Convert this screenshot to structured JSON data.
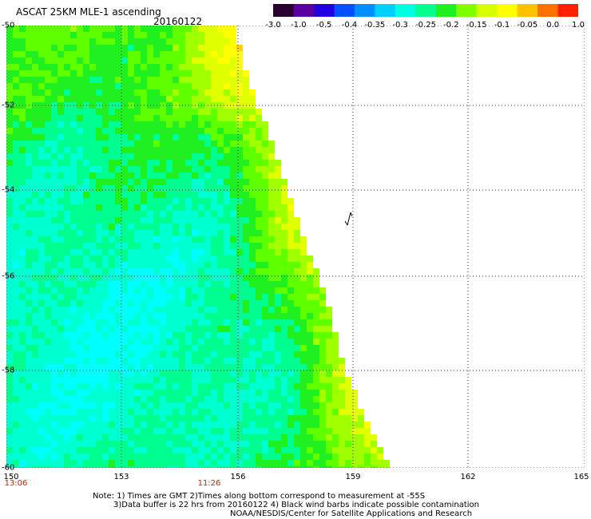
{
  "header": {
    "title": "ASCAT 25KM MLE-1 ascending",
    "date": "20160122"
  },
  "colorbar": {
    "colors": [
      "#2a0030",
      "#5a00a0",
      "#2000e0",
      "#0050ff",
      "#0090ff",
      "#00d0ff",
      "#00ffe0",
      "#00ff90",
      "#20f020",
      "#80ff00",
      "#d8ff00",
      "#ffff00",
      "#ffc000",
      "#ff7000",
      "#ff2000"
    ],
    "labels": [
      "-3.0",
      "-1.0",
      "-0.5",
      "-0.4",
      "-0.35",
      "-0.3",
      "-0.25",
      "-0.2",
      "-0.15",
      "-0.1",
      "-0.05",
      "0.0",
      "1.0"
    ]
  },
  "axes": {
    "lat_labels": [
      "-50",
      "-52",
      "-54",
      "-56",
      "-58",
      "-60"
    ],
    "lon_labels": [
      "150",
      "153",
      "156",
      "159",
      "162",
      "165"
    ],
    "time_labels": [
      "13:06",
      "11:26"
    ]
  },
  "notes": [
    "Note: 1) Times are GMT 2)Times along bottom correspond to measurement at -55S",
    "3)Data buffer is 22 hrs from 20160122 4) Black wind barbs indicate possible contamination",
    "NOAA/NESDIS/Center for Satellite Applications and Research"
  ]
}
